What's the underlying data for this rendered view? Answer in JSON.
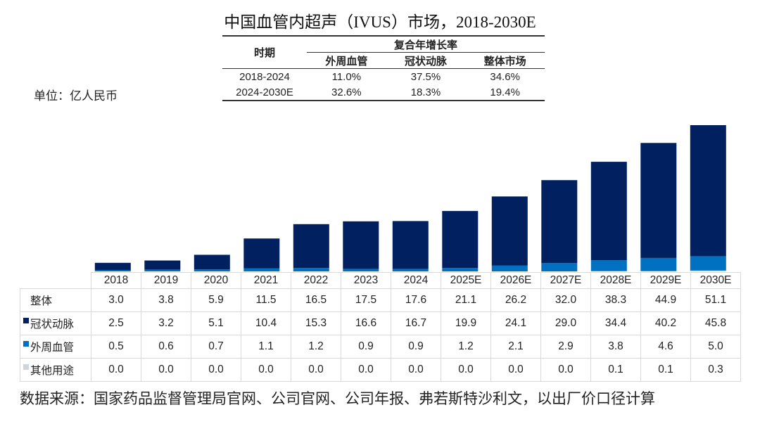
{
  "title": "中国血管内超声（IVUS）市场，2018-2030E",
  "unit_label": "单位：亿人民币",
  "cagr_table": {
    "period_header": "时期",
    "group_header": "复合年增长率",
    "columns": [
      "外周血管",
      "冠状动脉",
      "整体市场"
    ],
    "rows": [
      {
        "period": "2018-2024",
        "values": [
          "11.0%",
          "37.5%",
          "34.6%"
        ]
      },
      {
        "period": "2024-2030E",
        "values": [
          "32.6%",
          "18.3%",
          "19.4%"
        ]
      }
    ]
  },
  "colors": {
    "coronary": "#002060",
    "peripheral": "#0070C0",
    "other": "#D0D5DD"
  },
  "chart_data": {
    "type": "bar",
    "stacked": true,
    "title": "中国血管内超声（IVUS）市场，2018-2030E",
    "ylabel": "单位：亿人民币",
    "xlabel": "",
    "ylim": [
      0,
      55
    ],
    "grid": false,
    "legend": "table-left",
    "categories": [
      "2018",
      "2019",
      "2020",
      "2021",
      "2022",
      "2023",
      "2024",
      "2025E",
      "2026E",
      "2027E",
      "2028E",
      "2029E",
      "2030E"
    ],
    "total": {
      "name": "整体",
      "values": [
        3.0,
        3.8,
        5.9,
        11.5,
        16.5,
        17.5,
        17.6,
        21.1,
        26.2,
        32.0,
        38.3,
        44.9,
        51.1
      ]
    },
    "series": [
      {
        "name": "冠状动脉",
        "values": [
          2.5,
          3.2,
          5.1,
          10.4,
          15.3,
          16.6,
          16.7,
          19.9,
          24.1,
          29.0,
          34.4,
          40.2,
          45.8
        ]
      },
      {
        "name": "外周血管",
        "values": [
          0.5,
          0.6,
          0.7,
          1.1,
          1.2,
          0.9,
          0.9,
          1.2,
          2.1,
          2.9,
          3.8,
          4.6,
          5.0
        ]
      },
      {
        "name": "其他用途",
        "values": [
          0.0,
          0.0,
          0.0,
          0.0,
          0.0,
          0.0,
          0.0,
          0.0,
          0.0,
          0.0,
          0.1,
          0.1,
          0.3
        ]
      }
    ]
  },
  "data_table_values": {
    "total": [
      "3.0",
      "3.8",
      "5.9",
      "11.5",
      "16.5",
      "17.5",
      "17.6",
      "21.1",
      "26.2",
      "32.0",
      "38.3",
      "44.9",
      "51.1"
    ],
    "coronary": [
      "2.5",
      "3.2",
      "5.1",
      "10.4",
      "15.3",
      "16.6",
      "16.7",
      "19.9",
      "24.1",
      "29.0",
      "34.4",
      "40.2",
      "45.8"
    ],
    "peripheral": [
      "0.5",
      "0.6",
      "0.7",
      "1.1",
      "1.2",
      "0.9",
      "0.9",
      "1.2",
      "2.1",
      "2.9",
      "3.8",
      "4.6",
      "5.0"
    ],
    "other": [
      "0.0",
      "0.0",
      "0.0",
      "0.0",
      "0.0",
      "0.0",
      "0.0",
      "0.0",
      "0.0",
      "0.0",
      "0.1",
      "0.1",
      "0.3"
    ]
  },
  "source": "数据来源：国家药品监督管理局官网、公司官网、公司年报、弗若斯特沙利文，以出厂价口径计算"
}
